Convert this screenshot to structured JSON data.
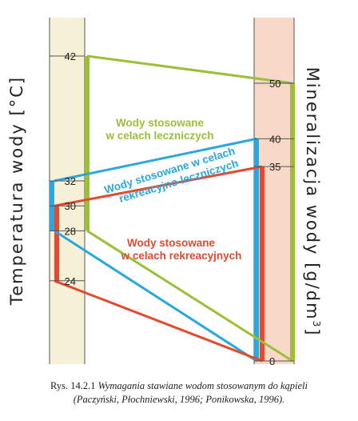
{
  "colors": {
    "green": "#9cbf38",
    "blue": "#2aa7dd",
    "red": "#e24a32",
    "left_column_bg": "#f7f1d8",
    "right_column_bg": "#f8d9c8",
    "axis_line": "#555555"
  },
  "left_axis": {
    "label": "Temperatura wody [°C]",
    "ticks": [
      42,
      32,
      30,
      28,
      24
    ],
    "ranges": [
      {
        "group": "green",
        "from": 28,
        "to": 42
      },
      {
        "group": "blue",
        "from": 28,
        "to": 32
      },
      {
        "group": "red",
        "from": 24,
        "to": 30
      }
    ]
  },
  "right_axis": {
    "label_main": "Mineralizacja wody [g/dm",
    "label_sup": "3",
    "label_end": "]",
    "ticks": [
      50,
      40,
      35,
      0
    ],
    "ranges": [
      {
        "group": "green",
        "from": 0,
        "to": 50
      },
      {
        "group": "blue",
        "from": 0,
        "to": 40
      },
      {
        "group": "red",
        "from": 0,
        "to": 35
      }
    ]
  },
  "connectors": [
    {
      "group": "green",
      "from_left": 42,
      "to_right": 50
    },
    {
      "group": "green",
      "from_left": 28,
      "to_right": 0
    },
    {
      "group": "blue",
      "from_left": 32,
      "to_right": 40
    },
    {
      "group": "blue",
      "from_left": 28,
      "to_right": 0
    },
    {
      "group": "red",
      "from_left": 30,
      "to_right": 35
    },
    {
      "group": "red",
      "from_left": 24,
      "to_right": 0
    }
  ],
  "groups": {
    "green": {
      "lines": [
        "Wody stosowane",
        "w celach leczniczych"
      ]
    },
    "blue": {
      "lines": [
        "Wody stosowane w celach",
        "rekreacyjno-leczniczych"
      ]
    },
    "red": {
      "lines": [
        "Wody stosowane",
        "w celach rekreacyjnych"
      ]
    }
  },
  "caption": {
    "prefix": "Rys. 14.2.1 ",
    "title": "Wymagania stawiane wodom stosowanym do kąpieli",
    "source": "(Paczyński, Płochniewski, 1996; Ponikowska, 1996)."
  }
}
